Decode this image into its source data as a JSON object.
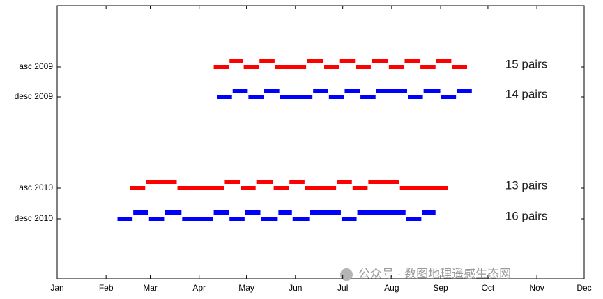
{
  "chart_data": {
    "type": "timeline",
    "xlim": [
      1,
      335
    ],
    "xticks": [
      {
        "value": 1,
        "label": "Jan"
      },
      {
        "value": 32,
        "label": "Feb"
      },
      {
        "value": 60,
        "label": "Mar"
      },
      {
        "value": 91,
        "label": "Apr"
      },
      {
        "value": 121,
        "label": "May"
      },
      {
        "value": 152,
        "label": "Jun"
      },
      {
        "value": 182,
        "label": "Jul"
      },
      {
        "value": 213,
        "label": "Aug"
      },
      {
        "value": 244,
        "label": "Sep"
      },
      {
        "value": 274,
        "label": "Oct"
      },
      {
        "value": 305,
        "label": "Nov"
      },
      {
        "value": 335,
        "label": "Dec"
      }
    ],
    "series": [
      {
        "name": "asc 2009",
        "color": "#ff0000",
        "label": "15 pairs",
        "x": [
          100,
          110,
          119,
          129,
          139,
          159,
          170,
          180,
          190,
          200,
          211,
          221,
          231,
          241,
          251,
          261
        ]
      },
      {
        "name": "desc 2009",
        "color": "#0000ff",
        "label": "14 pairs",
        "x": [
          102,
          112,
          122,
          132,
          142,
          163,
          173,
          183,
          193,
          203,
          223,
          233,
          244,
          254,
          264
        ]
      },
      {
        "name": "asc 2010",
        "color": "#ff0000",
        "label": "13 pairs",
        "x": [
          47,
          57,
          77,
          107,
          117,
          127,
          138,
          148,
          158,
          178,
          188,
          198,
          218,
          249
        ]
      },
      {
        "name": "desc 2010",
        "color": "#0000ff",
        "label": "16 pairs",
        "x": [
          39,
          49,
          59,
          69,
          80,
          100,
          110,
          120,
          130,
          141,
          150,
          161,
          181,
          191,
          222,
          232,
          241
        ]
      }
    ],
    "watermark": "公众号 · 数图地理遥感生态网"
  }
}
